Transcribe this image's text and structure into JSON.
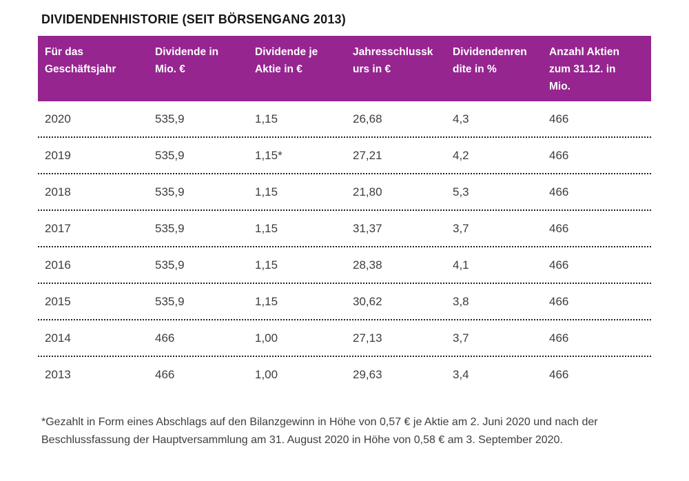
{
  "page": {
    "title": "DIVIDENDENHISTORIE (SEIT BÖRSENGANG 2013)"
  },
  "colors": {
    "header_bg": "#962590",
    "header_text": "#ffffff",
    "body_text": "#3d3d3d",
    "separator": "#1f1f1f"
  },
  "table": {
    "headers": [
      "Für das\nGeschäftsjahr",
      "Dividende in\nMio. €",
      "Dividende je\nAktie in €",
      "Jahresschlussk\nurs in €",
      "Dividendenren\ndite in %",
      "Anzahl Aktien\nzum 31.12. in\nMio."
    ],
    "rows": [
      [
        "2020",
        "535,9",
        "1,15",
        "26,68",
        "4,3",
        "466"
      ],
      [
        "2019",
        "535,9",
        "1,15*",
        "27,21",
        "4,2",
        "466"
      ],
      [
        "2018",
        "535,9",
        "1,15",
        "21,80",
        "5,3",
        "466"
      ],
      [
        "2017",
        "535,9",
        "1,15",
        "31,37",
        "3,7",
        "466"
      ],
      [
        "2016",
        "535,9",
        "1,15",
        "28,38",
        "4,1",
        "466"
      ],
      [
        "2015",
        "535,9",
        "1,15",
        "30,62",
        "3,8",
        "466"
      ],
      [
        "2014",
        "466",
        "1,00",
        "27,13",
        "3,7",
        "466"
      ],
      [
        "2013",
        "466",
        "1,00",
        "29,63",
        "3,4",
        "466"
      ]
    ]
  },
  "footnote": "*Gezahlt in Form eines Abschlags auf den Bilanzgewinn in Höhe von 0,57 € je Aktie am 2. Juni 2020 und nach der Beschlussfassung der Hauptversammlung am 31. August 2020 in Höhe von 0,58 € am 3. September 2020.",
  "chart_data": {
    "type": "table",
    "title": "DIVIDENDENHISTORIE (SEIT BÖRSENGANG 2013)",
    "columns": [
      "Für das Geschäftsjahr",
      "Dividende in Mio. €",
      "Dividende je Aktie in €",
      "Jahresschlusskurs in €",
      "Dividendenrendite in %",
      "Anzahl Aktien zum 31.12. in Mio."
    ],
    "rows": [
      {
        "jahr": 2020,
        "dividende_mio_eur": "535,9",
        "dividende_je_aktie_eur": "1,15",
        "jahresschlusskurs_eur": "26,68",
        "dividendenrendite_pct": "4,3",
        "anzahl_aktien_mio": "466"
      },
      {
        "jahr": 2019,
        "dividende_mio_eur": "535,9",
        "dividende_je_aktie_eur": "1,15*",
        "jahresschlusskurs_eur": "27,21",
        "dividendenrendite_pct": "4,2",
        "anzahl_aktien_mio": "466"
      },
      {
        "jahr": 2018,
        "dividende_mio_eur": "535,9",
        "dividende_je_aktie_eur": "1,15",
        "jahresschlusskurs_eur": "21,80",
        "dividendenrendite_pct": "5,3",
        "anzahl_aktien_mio": "466"
      },
      {
        "jahr": 2017,
        "dividende_mio_eur": "535,9",
        "dividende_je_aktie_eur": "1,15",
        "jahresschlusskurs_eur": "31,37",
        "dividendenrendite_pct": "3,7",
        "anzahl_aktien_mio": "466"
      },
      {
        "jahr": 2016,
        "dividende_mio_eur": "535,9",
        "dividende_je_aktie_eur": "1,15",
        "jahresschlusskurs_eur": "28,38",
        "dividendenrendite_pct": "4,1",
        "anzahl_aktien_mio": "466"
      },
      {
        "jahr": 2015,
        "dividende_mio_eur": "535,9",
        "dividende_je_aktie_eur": "1,15",
        "jahresschlusskurs_eur": "30,62",
        "dividendenrendite_pct": "3,8",
        "anzahl_aktien_mio": "466"
      },
      {
        "jahr": 2014,
        "dividende_mio_eur": "466",
        "dividende_je_aktie_eur": "1,00",
        "jahresschlusskurs_eur": "27,13",
        "dividendenrendite_pct": "3,7",
        "anzahl_aktien_mio": "466"
      },
      {
        "jahr": 2013,
        "dividende_mio_eur": "466",
        "dividende_je_aktie_eur": "1,00",
        "jahresschlusskurs_eur": "29,63",
        "dividendenrendite_pct": "3,4",
        "anzahl_aktien_mio": "466"
      }
    ],
    "footnote": "*Gezahlt in Form eines Abschlags auf den Bilanzgewinn in Höhe von 0,57 € je Aktie am 2. Juni 2020 und nach der Beschlussfassung der Hauptversammlung am 31. August 2020 in Höhe von 0,58 € am 3. September 2020."
  }
}
